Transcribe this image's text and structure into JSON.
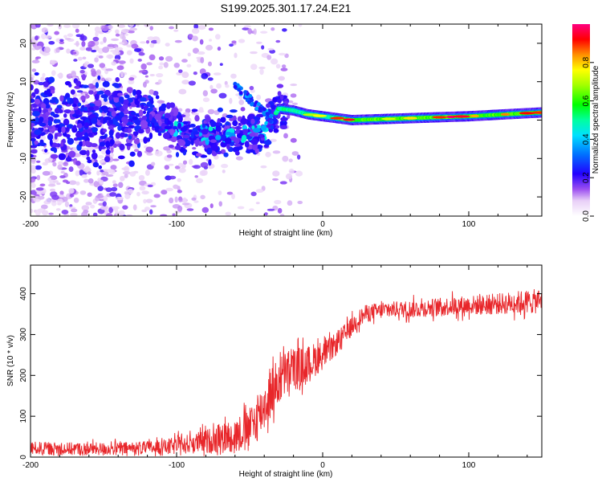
{
  "title": "S199.2025.301.17.24.E21",
  "chart_data": [
    {
      "type": "heatmap",
      "xlabel": "Height of straight line (km)",
      "ylabel": "Frequency (Hz)",
      "xlim": [
        -200,
        150
      ],
      "ylim": [
        -25,
        25
      ],
      "xticks": [
        -200,
        -100,
        0,
        100
      ],
      "xtick_labels": [
        "-200",
        "-100",
        "0",
        "100"
      ],
      "yticks": [
        -20,
        -10,
        0,
        10,
        20
      ],
      "ytick_labels": [
        "-20",
        "-10",
        "0",
        "10",
        "20"
      ],
      "ridge": [
        {
          "x": -120,
          "f": 1.5
        },
        {
          "x": -100,
          "f": -2
        },
        {
          "x": -80,
          "f": -4
        },
        {
          "x": -60,
          "f": -4
        },
        {
          "x": -40,
          "f": -3
        },
        {
          "x": -30,
          "f": 3
        },
        {
          "x": -20,
          "f": 2.5
        },
        {
          "x": -10,
          "f": 1.5
        },
        {
          "x": 0,
          "f": 1
        },
        {
          "x": 20,
          "f": 0
        },
        {
          "x": 60,
          "f": 0.5
        },
        {
          "x": 100,
          "f": 1
        },
        {
          "x": 150,
          "f": 2
        }
      ],
      "colorbar": {
        "label": "Normalized spectral amplitude",
        "range": [
          0,
          1
        ],
        "ticks": [
          0.0,
          0.2,
          0.4,
          0.6,
          0.8
        ],
        "tick_labels": [
          "0.0",
          "0.2",
          "0.4",
          "0.6",
          "0.8"
        ]
      }
    },
    {
      "type": "line",
      "xlabel": "Height of straight line (km)",
      "ylabel": "SNR (10 * v/v)",
      "xlim": [
        -200,
        150
      ],
      "ylim": [
        0,
        470
      ],
      "xticks": [
        -200,
        -100,
        0,
        100
      ],
      "xtick_labels": [
        "-200",
        "-100",
        "0",
        "100"
      ],
      "yticks": [
        0,
        100,
        200,
        300,
        400
      ],
      "ytick_labels": [
        "0",
        "100",
        "200",
        "300",
        "400"
      ],
      "series": [
        {
          "name": "SNR",
          "color": "#e8262a",
          "x": [
            -200,
            -175,
            -150,
            -125,
            -110,
            -100,
            -90,
            -80,
            -70,
            -60,
            -50,
            -45,
            -40,
            -35,
            -30,
            -25,
            -20,
            -15,
            -10,
            -5,
            0,
            5,
            10,
            15,
            20,
            25,
            30,
            40,
            50,
            60,
            70,
            80,
            90,
            100,
            110,
            120,
            130,
            140,
            150
          ],
          "y": [
            22,
            20,
            20,
            22,
            24,
            28,
            33,
            38,
            45,
            55,
            70,
            95,
            125,
            160,
            185,
            205,
            215,
            220,
            225,
            240,
            250,
            262,
            280,
            300,
            320,
            340,
            352,
            358,
            362,
            362,
            365,
            368,
            370,
            372,
            372,
            375,
            378,
            380,
            382
          ],
          "noise": [
            16,
            16,
            16,
            16,
            18,
            22,
            25,
            30,
            36,
            42,
            50,
            58,
            62,
            62,
            60,
            58,
            55,
            50,
            48,
            42,
            36,
            30,
            28,
            26,
            24,
            22,
            22,
            20,
            20,
            22,
            22,
            22,
            24,
            24,
            25,
            26,
            28,
            30,
            30
          ]
        }
      ]
    }
  ]
}
